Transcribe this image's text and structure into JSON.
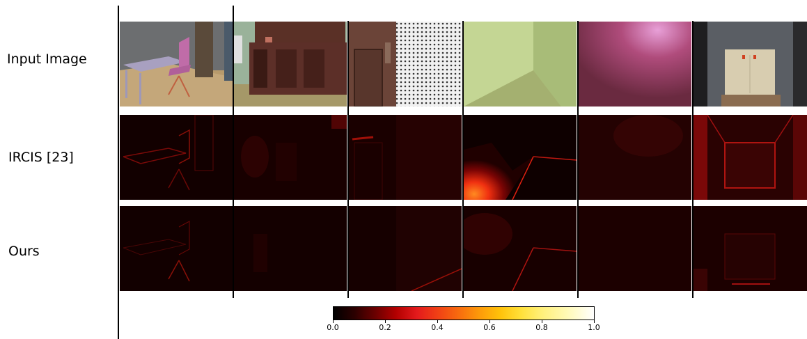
{
  "rows": [
    {
      "label": "Input Image"
    },
    {
      "label": "IRCIS [23]"
    },
    {
      "label": "Ours"
    }
  ],
  "colorbar": {
    "ticks": [
      "0.0",
      "0.2",
      "0.4",
      "0.6",
      "0.8",
      "1.0"
    ],
    "colormap": "hot"
  },
  "colors": {
    "background": "#ffffff",
    "divider": "#000000"
  }
}
